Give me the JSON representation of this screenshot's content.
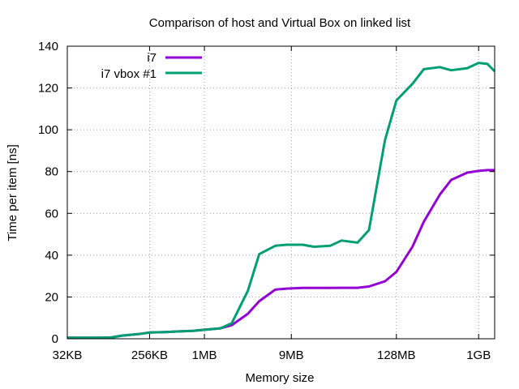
{
  "chart_data": {
    "type": "line",
    "title": "Comparison of host and Virtual Box on linked list",
    "xlabel": "Memory size",
    "ylabel": "Time per item [ns]",
    "x_scale": "log2",
    "x_unit": "KB",
    "xlim": [
      32,
      1572864
    ],
    "ylim": [
      0,
      140
    ],
    "grid": true,
    "legend_position": "top-left",
    "xticks": [
      {
        "value": 32,
        "label": "32KB"
      },
      {
        "value": 256,
        "label": "256KB"
      },
      {
        "value": 1024,
        "label": "1MB"
      },
      {
        "value": 9216,
        "label": "9MB"
      },
      {
        "value": 131072,
        "label": "128MB"
      },
      {
        "value": 1048576,
        "label": "1GB"
      }
    ],
    "yticks": [
      {
        "value": 0,
        "label": "0"
      },
      {
        "value": 20,
        "label": "20"
      },
      {
        "value": 40,
        "label": "40"
      },
      {
        "value": 60,
        "label": "60"
      },
      {
        "value": 80,
        "label": "80"
      },
      {
        "value": 100,
        "label": "100"
      },
      {
        "value": 120,
        "label": "120"
      },
      {
        "value": 140,
        "label": "140"
      }
    ],
    "series": [
      {
        "name": "i7",
        "color": "#9400d3",
        "points": [
          [
            32,
            0.5
          ],
          [
            48,
            0.5
          ],
          [
            64,
            0.5
          ],
          [
            96,
            0.6
          ],
          [
            128,
            1.5
          ],
          [
            192,
            2.2
          ],
          [
            256,
            3.0
          ],
          [
            384,
            3.2
          ],
          [
            512,
            3.5
          ],
          [
            768,
            3.8
          ],
          [
            1024,
            4.3
          ],
          [
            1536,
            5.0
          ],
          [
            2048,
            6.5
          ],
          [
            3072,
            12.0
          ],
          [
            4096,
            18.0
          ],
          [
            6144,
            23.5
          ],
          [
            8192,
            24.0
          ],
          [
            12288,
            24.3
          ],
          [
            16384,
            24.3
          ],
          [
            24576,
            24.3
          ],
          [
            32768,
            24.4
          ],
          [
            49152,
            24.4
          ],
          [
            65536,
            25.0
          ],
          [
            98304,
            27.5
          ],
          [
            131072,
            32.0
          ],
          [
            196608,
            44.0
          ],
          [
            262144,
            56.0
          ],
          [
            393216,
            69.0
          ],
          [
            524288,
            76.0
          ],
          [
            786432,
            79.5
          ],
          [
            1048576,
            80.3
          ],
          [
            1310720,
            80.7
          ],
          [
            1572864,
            80.7
          ]
        ]
      },
      {
        "name": "i7 vbox #1",
        "color": "#009e73",
        "points": [
          [
            32,
            0.5
          ],
          [
            48,
            0.5
          ],
          [
            64,
            0.5
          ],
          [
            96,
            0.6
          ],
          [
            128,
            1.5
          ],
          [
            192,
            2.2
          ],
          [
            256,
            3.0
          ],
          [
            384,
            3.2
          ],
          [
            512,
            3.5
          ],
          [
            768,
            3.8
          ],
          [
            1024,
            4.3
          ],
          [
            1536,
            5.0
          ],
          [
            2048,
            7.5
          ],
          [
            3072,
            23.0
          ],
          [
            4096,
            40.5
          ],
          [
            6144,
            44.5
          ],
          [
            8192,
            45.0
          ],
          [
            12288,
            45.0
          ],
          [
            16384,
            44.0
          ],
          [
            24576,
            44.5
          ],
          [
            32768,
            47.0
          ],
          [
            49152,
            46.0
          ],
          [
            65536,
            52.0
          ],
          [
            98304,
            95.0
          ],
          [
            131072,
            114.0
          ],
          [
            196608,
            122.0
          ],
          [
            262144,
            129.0
          ],
          [
            393216,
            130.0
          ],
          [
            524288,
            128.5
          ],
          [
            786432,
            129.5
          ],
          [
            1048576,
            132.0
          ],
          [
            1310720,
            131.5
          ],
          [
            1572864,
            128.0
          ]
        ]
      }
    ]
  }
}
